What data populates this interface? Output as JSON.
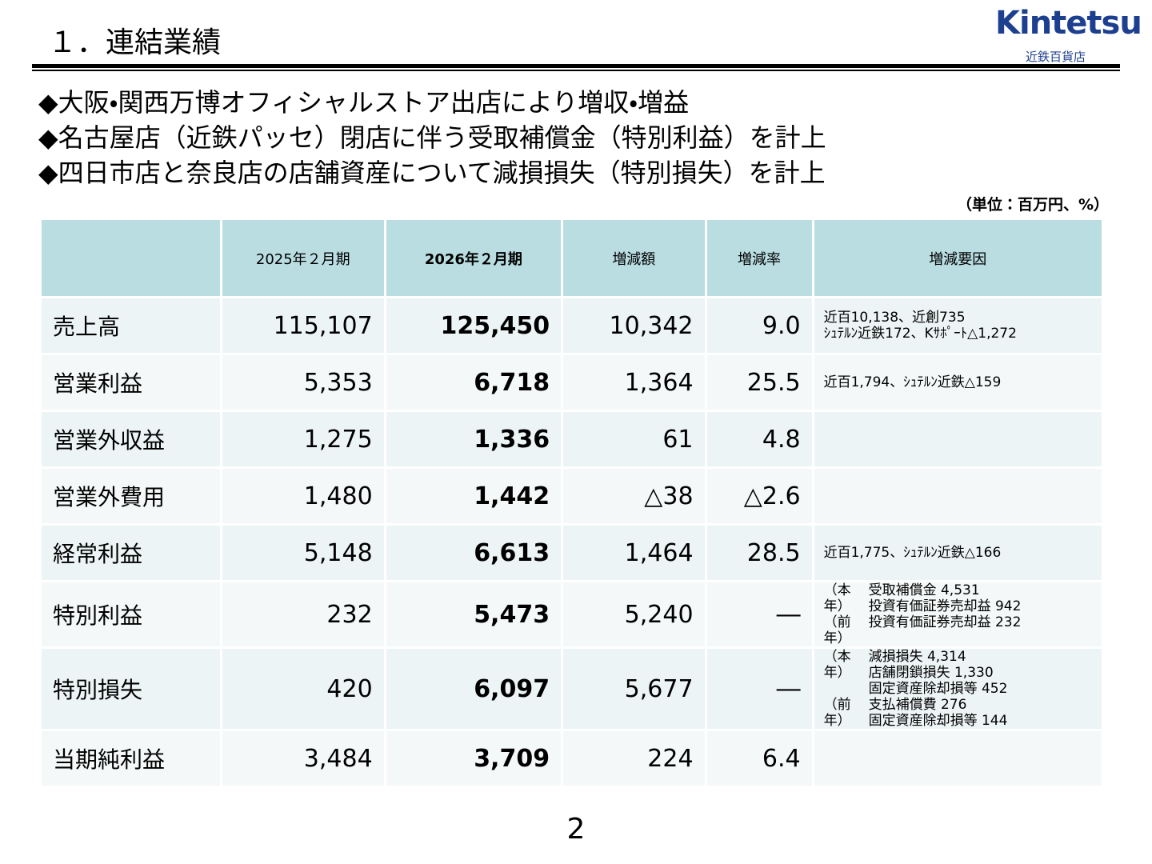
{
  "header": {
    "title": "１．連結業績",
    "logo": "Kintetsu",
    "logo_sub": "近鉄百貨店"
  },
  "bullets": [
    "◆大阪・関西万博オフィシャルストア出店により増収・増益",
    "◆名古屋店（近鉄パッセ）閉店に伴う受取補償金（特別利益）を計上",
    "◆四日市店と奈良店の店舗資産について減損損失（特別損失）を計上"
  ],
  "unit": "（単位：百万円、%）",
  "table": {
    "columns": [
      "",
      "2025年２月期",
      "2026年２月期",
      "増減額",
      "増減率",
      "増減要因"
    ],
    "rows": [
      {
        "label": "売上高",
        "cells": [
          "115,107",
          "125,450",
          "10,342",
          "9.0"
        ],
        "reason": {
          "lines": [
            "近百10,138、近創735",
            "ｼｭﾃﾙﾝ近鉄172、Kｻﾎﾟｰﾄ△1,272"
          ]
        }
      },
      {
        "label": "営業利益",
        "cells": [
          "5,353",
          "6,718",
          "1,364",
          "25.5"
        ],
        "reason": {
          "lines": [
            "近百1,794、ｼｭﾃﾙﾝ近鉄△159"
          ]
        }
      },
      {
        "label": "営業外収益",
        "cells": [
          "1,275",
          "1,336",
          "61",
          "4.8"
        ]
      },
      {
        "label": "営業外費用",
        "cells": [
          "1,480",
          "1,442",
          "△38",
          "△2.6"
        ]
      },
      {
        "label": "経常利益",
        "cells": [
          "5,148",
          "6,613",
          "1,464",
          "28.5"
        ],
        "reason": {
          "lines": [
            "近百1,775、ｼｭﾃﾙﾝ近鉄△166"
          ]
        }
      },
      {
        "label": "特別利益",
        "cells": [
          "232",
          "5,473",
          "5,240",
          "―"
        ],
        "reason": {
          "groups": [
            {
              "label": "（本年）",
              "items": [
                "受取補償金 4,531",
                "投資有価証券売却益 942"
              ]
            },
            {
              "label": "（前年）",
              "items": [
                "投資有価証券売却益 232"
              ]
            }
          ]
        }
      },
      {
        "label": "特別損失",
        "cells": [
          "420",
          "6,097",
          "5,677",
          "―"
        ],
        "reason": {
          "groups": [
            {
              "label": "（本年）",
              "items": [
                "減損損失 4,314",
                "店舗閉鎖損失 1,330",
                "固定資産除却損等 452"
              ]
            },
            {
              "label": "（前年）",
              "items": [
                "支払補償費 276",
                "固定資産除却損等 144"
              ]
            }
          ]
        }
      },
      {
        "label": "当期純利益",
        "cells": [
          "3,484",
          "3,709",
          "224",
          "6.4"
        ]
      }
    ]
  },
  "page_number": "2"
}
